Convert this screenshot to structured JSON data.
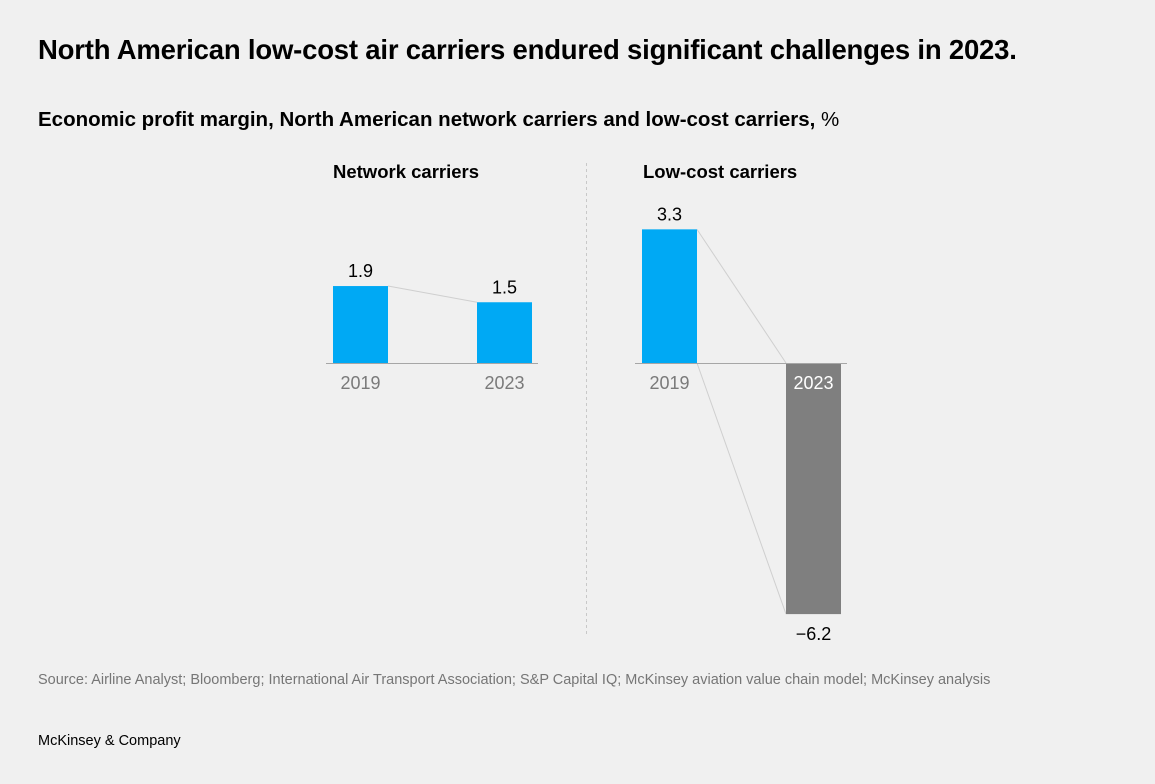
{
  "header": {
    "title": "North American low-cost air carriers endured significant challenges in 2023.",
    "subtitle": "Economic profit margin, North American network carriers and low-cost carriers,",
    "unit": "%"
  },
  "footer": {
    "source": "Source: Airline Analyst; Bloomberg; International Air Transport Association; S&P Capital IQ; McKinsey aviation value chain model; McKinsey analysis",
    "brand": "McKinsey & Company"
  },
  "colors": {
    "positive": "#00a9f4",
    "negative": "#7f7f7f",
    "axis": "#a6a6a6",
    "connector": "#cfcfcf",
    "divider": "#c8c8c8"
  },
  "chart_data": [
    {
      "type": "bar",
      "title": "Network carriers",
      "categories": [
        "2019",
        "2023"
      ],
      "values": [
        1.9,
        1.5
      ],
      "value_labels": [
        "1.9",
        "1.5"
      ],
      "xlabel": "",
      "ylabel": "Economic profit margin, %",
      "ylim": [
        -6.2,
        3.3
      ],
      "grid": false,
      "connectors": true
    },
    {
      "type": "bar",
      "title": "Low-cost carriers",
      "categories": [
        "2019",
        "2023"
      ],
      "values": [
        3.3,
        -6.2
      ],
      "value_labels": [
        "3.3",
        "−6.2"
      ],
      "xlabel": "",
      "ylabel": "Economic profit margin, %",
      "ylim": [
        -6.2,
        3.3
      ],
      "grid": false,
      "connectors": true
    }
  ]
}
